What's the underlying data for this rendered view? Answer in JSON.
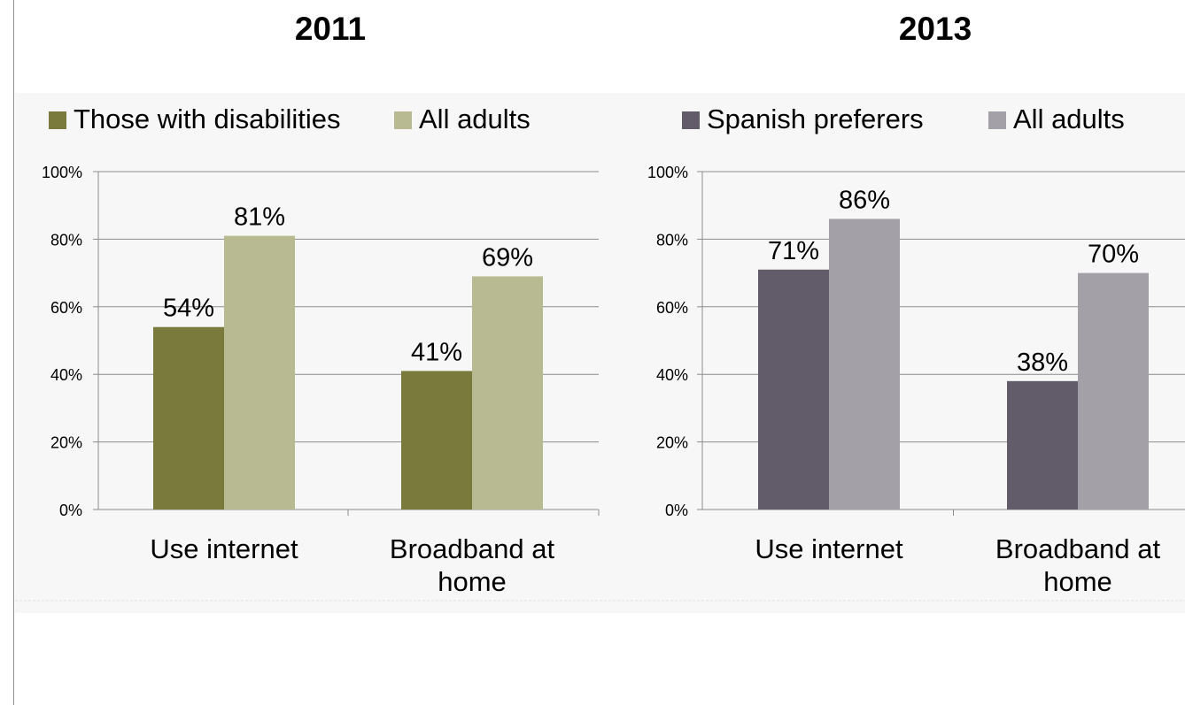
{
  "titles": [
    "2011",
    "2013"
  ],
  "chart_data": [
    {
      "type": "bar",
      "title": "2011",
      "categories": [
        "Use internet",
        "Broadband at home"
      ],
      "series": [
        {
          "name": "Those with disabilities",
          "values": [
            54,
            41
          ],
          "color": "#7a7a3c"
        },
        {
          "name": "All adults",
          "values": [
            81,
            69
          ],
          "color": "#b8bb92"
        }
      ],
      "data_labels": [
        [
          "54%",
          "41%"
        ],
        [
          "81%",
          "69%"
        ]
      ],
      "yticks": [
        "0%",
        "20%",
        "40%",
        "60%",
        "80%",
        "100%"
      ],
      "ylim": [
        0,
        100
      ],
      "grid": true,
      "legend": "top"
    },
    {
      "type": "bar",
      "title": "2013",
      "categories": [
        "Use internet",
        "Broadband at home"
      ],
      "series": [
        {
          "name": "Spanish preferers",
          "values": [
            71,
            38
          ],
          "color": "#625c6a"
        },
        {
          "name": "All adults",
          "values": [
            86,
            70
          ],
          "color": "#a3a0a8"
        }
      ],
      "data_labels": [
        [
          "71%",
          "38%"
        ],
        [
          "86%",
          "70%"
        ]
      ],
      "yticks": [
        "0%",
        "20%",
        "40%",
        "60%",
        "80%",
        "100%"
      ],
      "ylim": [
        0,
        100
      ],
      "grid": true,
      "legend": "top"
    }
  ]
}
